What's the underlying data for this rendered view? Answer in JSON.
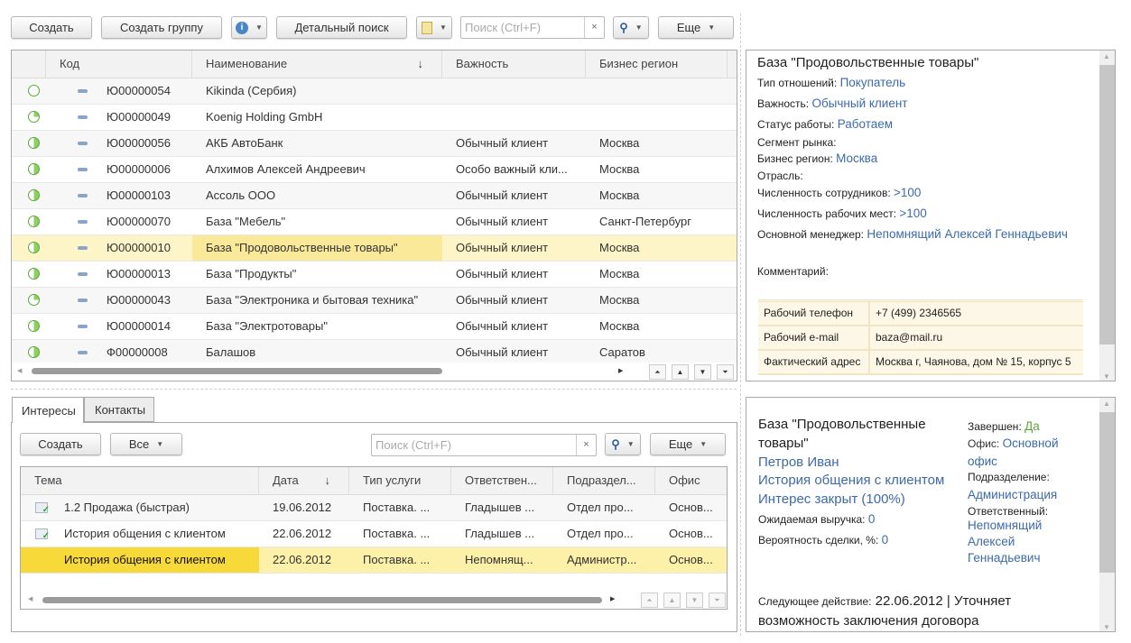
{
  "toolbar": {
    "create": "Создать",
    "create_group": "Создать группу",
    "detail_search": "Детальный поиск",
    "search_placeholder": "Поиск (Ctrl+F)",
    "more": "Еще",
    "icons": [
      "info-icon",
      "report-icon",
      "search-icon",
      "clear-icon"
    ]
  },
  "main_table": {
    "columns": [
      "Код",
      "Наименование",
      "Важность",
      "Бизнес регион"
    ],
    "rows": [
      {
        "status": "empty",
        "code": "Ю00000054",
        "name": "Kikinda (Сербия)",
        "importance": "",
        "region": ""
      },
      {
        "status": "quarter",
        "code": "Ю00000049",
        "name": "Koenig Holding GmbH",
        "importance": "",
        "region": ""
      },
      {
        "status": "half",
        "code": "Ю00000056",
        "name": "АКБ АвтоБанк",
        "importance": "Обычный клиент",
        "region": "Москва"
      },
      {
        "status": "half",
        "code": "Ю00000006",
        "name": "Алхимов Алексей Андреевич",
        "importance": "Особо важный кли...",
        "region": "Москва"
      },
      {
        "status": "half",
        "code": "Ю00000103",
        "name": "Ассоль ООО",
        "importance": "Обычный клиент",
        "region": "Москва"
      },
      {
        "status": "half",
        "code": "Ю00000070",
        "name": "База \"Мебель\"",
        "importance": "Обычный клиент",
        "region": "Санкт-Петербург"
      },
      {
        "status": "half",
        "code": "Ю00000010",
        "name": "База \"Продовольственные товары\"",
        "importance": "Обычный клиент",
        "region": "Москва",
        "selected": true
      },
      {
        "status": "half",
        "code": "Ю00000013",
        "name": "База \"Продукты\"",
        "importance": "Обычный клиент",
        "region": "Москва"
      },
      {
        "status": "quarter",
        "code": "Ю00000043",
        "name": "База \"Электроника и бытовая техника\"",
        "importance": "Обычный клиент",
        "region": "Москва"
      },
      {
        "status": "half",
        "code": "Ю00000014",
        "name": "База \"Электротовары\"",
        "importance": "Обычный клиент",
        "region": "Москва"
      },
      {
        "status": "half",
        "code": "Ф00000008",
        "name": "Балашов",
        "importance": "Обычный клиент",
        "region": "Саратов"
      }
    ]
  },
  "details": {
    "title": "База \"Продовольственные товары\"",
    "fields": [
      {
        "label": "Тип отношений:",
        "value": "Покупатель"
      },
      {
        "label": "Важность:",
        "value": "Обычный клиент"
      },
      {
        "label": "Статус работы:",
        "value": "Работаем"
      },
      {
        "label": "Сегмент рынка:",
        "value": ""
      },
      {
        "label": "Бизнес регион:",
        "value": "Москва"
      },
      {
        "label": "Отрасль:",
        "value": ""
      },
      {
        "label": "Численность сотрудников:",
        "value": ">100"
      },
      {
        "label": "Численность рабочих мест:",
        "value": ">100"
      },
      {
        "label": "Основной менеджер:",
        "value": "Непомнящий Алексей Геннадьевич"
      }
    ],
    "comment_label": "Комментарий:",
    "contacts": [
      {
        "label": "Рабочий телефон",
        "value": "+7 (499) 2346565"
      },
      {
        "label": "Рабочий e-mail",
        "value": "baza@mail.ru"
      },
      {
        "label": "Фактический адрес",
        "value": "Москва г, Чаянова, дом № 15, корпус 5"
      }
    ]
  },
  "tabs": [
    "Интересы",
    "Контакты"
  ],
  "sub_toolbar": {
    "create": "Создать",
    "filter": "Все",
    "search_placeholder": "Поиск (Ctrl+F)",
    "more": "Еще"
  },
  "interests_table": {
    "columns": [
      "Тема",
      "Дата",
      "Тип услуги",
      "Ответствен...",
      "Подраздел...",
      "Офис"
    ],
    "rows": [
      {
        "topic": "1.2 Продажа (быстрая)",
        "date": "19.06.2012",
        "service": "Поставка. ...",
        "resp": "Гладышев ...",
        "dept": "Отдел про...",
        "office": "Основ..."
      },
      {
        "topic": "История общения с клиентом",
        "date": "22.06.2012",
        "service": "Поставка. ...",
        "resp": "Гладышев ...",
        "dept": "Отдел про...",
        "office": "Основ..."
      },
      {
        "topic": "История общения с клиентом",
        "date": "22.06.2012",
        "service": "Поставка. ...",
        "resp": "Непомнящ...",
        "dept": "Администр...",
        "office": "Основ...",
        "selected": true
      }
    ]
  },
  "interest_details": {
    "title": "База \"Продовольственные товары\"",
    "contact": "Петров Иван",
    "topic": "История общения с клиентом",
    "state": "Интерес закрыт (100%)",
    "revenue_label": "Ожидаемая выручка:",
    "revenue": "0",
    "probability_label": "Вероятность сделки, %:",
    "probability": "0",
    "completed_label": "Завершен:",
    "completed": "Да",
    "office_label": "Офис:",
    "office": "Основной офис",
    "dept_label": "Подразделение:",
    "dept": "Администрация",
    "resp_label": "Ответственный:",
    "resp": "Непомнящий Алексей Геннадьевич",
    "next_label": "Следующее действие:",
    "next": "22.06.2012 | Уточняет возможность заключения договора"
  },
  "colors": {
    "link": "#3d6aa8",
    "selected_row": "#fdf4c8",
    "selected_cell": "#fbe99a",
    "selected_cell_strong": "#f7d93a",
    "green": "#5aa83a"
  }
}
